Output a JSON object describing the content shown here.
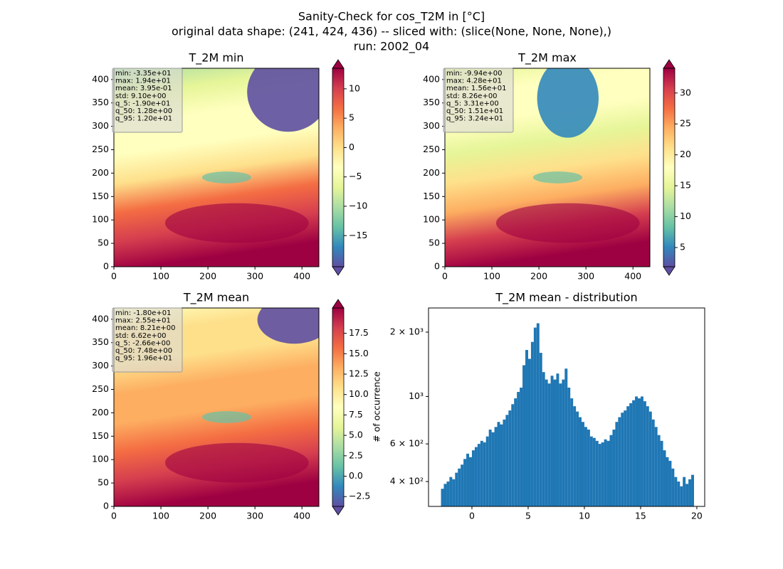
{
  "figure_title": [
    "Sanity-Check for cos_T2M in [°C]",
    "original data shape: (241, 424, 436) -- sliced with: (slice(None, None, None),)",
    "run: 2002_04"
  ],
  "chart_data": [
    {
      "type": "heatmap",
      "title": "T_2M min",
      "xlim": [
        0,
        436
      ],
      "ylim": [
        0,
        424
      ],
      "xticks": [
        0,
        100,
        200,
        300,
        400
      ],
      "yticks": [
        0,
        50,
        100,
        150,
        200,
        250,
        300,
        350,
        400
      ],
      "stats": [
        "min: -3.35e+01",
        "max: 1.94e+01",
        "mean: 3.95e-01",
        "std: 9.10e+00",
        "q_5: -1.90e+01",
        "q_50: 1.28e+00",
        "q_95: 1.20e+01"
      ],
      "colormap": [
        "#5e4fa2",
        "#3288bd",
        "#66c2a5",
        "#abdda4",
        "#e6f598",
        "#ffffbf",
        "#fee08b",
        "#fdae61",
        "#f46d43",
        "#d53e4f",
        "#9e0142"
      ],
      "colorbar": {
        "clim": [
          -20.3,
          13.5
        ],
        "extend": "both",
        "ticks": [
          {
            "value": -15,
            "label": "−15"
          },
          {
            "value": -10,
            "label": "−10"
          },
          {
            "value": -5,
            "label": "−5"
          },
          0,
          5,
          10
        ]
      }
    },
    {
      "type": "heatmap",
      "title": "T_2M max",
      "xlim": [
        0,
        436
      ],
      "ylim": [
        0,
        424
      ],
      "xticks": [
        0,
        100,
        200,
        300,
        400
      ],
      "yticks": [
        0,
        50,
        100,
        150,
        200,
        250,
        300,
        350,
        400
      ],
      "stats": [
        "min: -9.94e+00",
        "max: 4.28e+01",
        "mean: 1.56e+01",
        "std: 8.26e+00",
        "q_5: 3.31e+00",
        "q_50: 1.51e+01",
        "q_95: 3.24e+01"
      ],
      "colormap": [
        "#5e4fa2",
        "#3288bd",
        "#66c2a5",
        "#abdda4",
        "#e6f598",
        "#ffffbf",
        "#fee08b",
        "#fdae61",
        "#f46d43",
        "#d53e4f",
        "#9e0142"
      ],
      "colorbar": {
        "clim": [
          1.9,
          34.0
        ],
        "extend": "both",
        "ticks": [
          5,
          10,
          15,
          20,
          25,
          30
        ]
      }
    },
    {
      "type": "heatmap",
      "title": "T_2M mean",
      "xlim": [
        0,
        436
      ],
      "ylim": [
        0,
        424
      ],
      "xticks": [
        0,
        100,
        200,
        300,
        400
      ],
      "yticks": [
        0,
        50,
        100,
        150,
        200,
        250,
        300,
        350,
        400
      ],
      "stats": [
        "min: -1.80e+01",
        "max: 2.55e+01",
        "mean: 8.21e+00",
        "std: 6.62e+00",
        "q_5: -2.66e+00",
        "q_50: 7.48e+00",
        "q_95: 1.96e+01"
      ],
      "colormap": [
        "#5e4fa2",
        "#3288bd",
        "#66c2a5",
        "#abdda4",
        "#e6f598",
        "#ffffbf",
        "#fee08b",
        "#fdae61",
        "#f46d43",
        "#d53e4f",
        "#9e0142"
      ],
      "colorbar": {
        "clim": [
          -3.7,
          20.6
        ],
        "extend": "both",
        "ticks": [
          {
            "value": -2.5,
            "label": "−2.5"
          },
          {
            "value": 0,
            "label": "0.0"
          },
          2.5,
          {
            "value": 5,
            "label": "5.0"
          },
          7.5,
          {
            "value": 10,
            "label": "10.0"
          },
          12.5,
          {
            "value": 15,
            "label": "15.0"
          },
          17.5
        ]
      }
    },
    {
      "type": "histogram",
      "title": "T_2M mean - distribution",
      "ylabel": "# of occurrence",
      "color": "#1f77b4",
      "log_y": true,
      "xlim": [
        -3.86,
        20.7
      ],
      "ylim": [
        306,
        2594
      ],
      "xticks": [
        0,
        5,
        10,
        15,
        20
      ],
      "yticks": [
        {
          "value": 400,
          "label": "4 × 10²"
        },
        {
          "value": 600,
          "label": "6 × 10²"
        },
        {
          "value": 1000,
          "label": "10³"
        },
        {
          "value": 2000,
          "label": "2 × 10³"
        }
      ],
      "bins": [
        -2.75,
        -2.5,
        -2.25,
        -2,
        -1.75,
        -1.5,
        -1.25,
        -1,
        -0.75,
        -0.5,
        -0.25,
        0,
        0.25,
        0.5,
        0.75,
        1,
        1.25,
        1.5,
        1.75,
        2,
        2.25,
        2.5,
        2.75,
        3,
        3.25,
        3.5,
        3.75,
        4,
        4.25,
        4.5,
        4.75,
        5,
        5.25,
        5.5,
        5.75,
        6,
        6.25,
        6.5,
        6.75,
        7,
        7.25,
        7.5,
        7.75,
        8,
        8.25,
        8.5,
        8.75,
        9,
        9.25,
        9.5,
        9.75,
        10,
        10.25,
        10.5,
        10.75,
        11,
        11.25,
        11.5,
        11.75,
        12,
        12.25,
        12.5,
        12.75,
        13,
        13.25,
        13.5,
        13.75,
        14,
        14.25,
        14.5,
        14.75,
        15,
        15.25,
        15.5,
        15.75,
        16,
        16.25,
        16.5,
        16.75,
        17,
        17.25,
        17.5,
        17.75,
        18,
        18.25,
        18.5,
        18.75,
        19,
        19.25,
        19.5,
        19.75
      ],
      "counts": [
        370,
        390,
        400,
        420,
        410,
        440,
        460,
        480,
        510,
        540,
        520,
        560,
        580,
        600,
        620,
        610,
        650,
        700,
        680,
        720,
        760,
        740,
        780,
        820,
        860,
        920,
        980,
        1050,
        1100,
        1400,
        1650,
        1500,
        1800,
        2100,
        2200,
        1600,
        1300,
        1200,
        1150,
        1250,
        1200,
        1280,
        1150,
        1200,
        1350,
        1100,
        980,
        900,
        850,
        800,
        760,
        720,
        700,
        650,
        640,
        620,
        600,
        610,
        630,
        620,
        660,
        700,
        760,
        800,
        840,
        860,
        900,
        930,
        960,
        1000,
        980,
        1000,
        950,
        900,
        850,
        780,
        720,
        660,
        620,
        560,
        520,
        500,
        460,
        420,
        400,
        380,
        420,
        390,
        410,
        430
      ]
    }
  ]
}
